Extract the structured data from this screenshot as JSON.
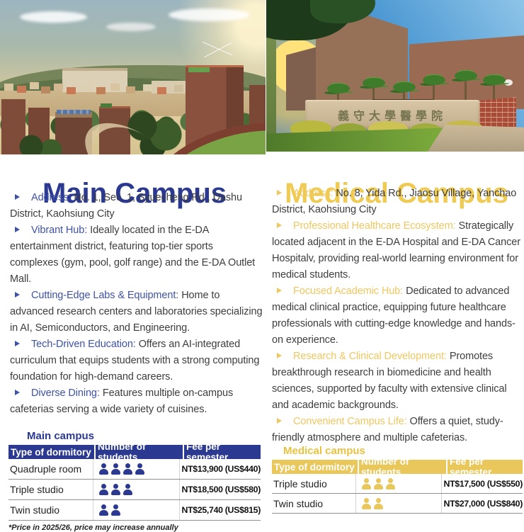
{
  "colors": {
    "main_accent": "#2b3a90",
    "medical_accent": "#f0cb54",
    "body_text": "#3d3d3d",
    "table_header_blue": "#2b3990",
    "table_header_yellow": "#e9c75a"
  },
  "photos": {
    "left_description": "aerial view of main campus with dormitories, trees and running track at sunset",
    "right_description": "medical campus hospital building with palm trees and stone entrance sign",
    "medical_sign_text": "義守大學醫學院"
  },
  "main_campus": {
    "title": "Main Campus",
    "items": [
      {
        "label": "Address:",
        "text": "No. 1, Sec. 1, Syuecheng Rd., Dashu District, Kaohsiung City"
      },
      {
        "label": "Vibrant Hub:",
        "text": "Ideally located in the E-DA entertainment district, featuring top-tier sports complexes (gym, pool, golf range) and the E-DA Outlet Mall."
      },
      {
        "label": "Cutting-Edge Labs & Equipment:",
        "text": "Home to advanced research centers and laboratories specializing in AI, Semiconductors, and Engineering."
      },
      {
        "label": "Tech-Driven Education:",
        "text": "Offers an AI-integrated curriculum that equips students with a strong computing foundation for high-demand careers."
      },
      {
        "label": "Diverse Dining:",
        "text": "Features multiple on-campus cafeterias serving a wide variety of cuisines."
      }
    ]
  },
  "medical_campus": {
    "title": "Medical Campus",
    "items": [
      {
        "label": "Address:",
        "text": "No. 8, Yida Rd., Jiaosu Village, Yanchao District, Kaohsiung City"
      },
      {
        "label": "Professional Healthcare Ecosystem:",
        "text": "Strategically located adjacent in the E-DA Hospital and E-DA Cancer Hospitalv, providing real-world learning environment for medical students."
      },
      {
        "label": "Focused Academic Hub:",
        "text": "Dedicated to advanced medical clinical practice, equipping future healthcare professionals with cutting-edge knowledge and hands-on experience."
      },
      {
        "label": "Research & Clinical Development:",
        "text": "Promotes breakthrough research in biomedicine and health sciences, supported by faculty with extensive clinical and academic backgrounds."
      },
      {
        "label": "Convenient Campus Life:",
        "text": "Offers a quiet, study-friendly atmosphere and multiple cafeterias."
      }
    ]
  },
  "main_table": {
    "title": "Main campus",
    "headers": [
      "Type of dormitory",
      "Number of students",
      "Fee per semester"
    ],
    "rows": [
      {
        "type": "Quadruple room",
        "students": 4,
        "fee": "NT$13,900 (US$440)"
      },
      {
        "type": "Triple studio",
        "students": 3,
        "fee": "NT$18,500 (US$580)"
      },
      {
        "type": "Twin studio",
        "students": 2,
        "fee": "NT$25,740 (US$815)"
      }
    ],
    "footnote": "*Price in 2025/26, price may increase annually"
  },
  "medical_table": {
    "title": "Medical campus",
    "headers": [
      "Type of dormitory",
      "Number of students",
      "Fee per semester"
    ],
    "rows": [
      {
        "type": "Triple studio",
        "students": 3,
        "fee": "NT$17,500 (US$550)"
      },
      {
        "type": "Twin studio",
        "students": 2,
        "fee": "NT$27,000 (US$840)"
      }
    ]
  }
}
